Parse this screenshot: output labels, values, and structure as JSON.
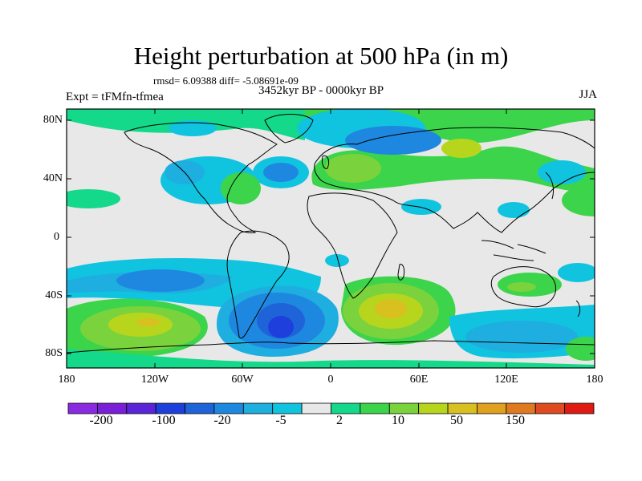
{
  "title": "Height perturbation at 500 hPa (in m)",
  "stats": "rmsd= 6.09388 diff= -5.08691e-09",
  "experiment": "Expt = tFMfn-tfmea",
  "period": "3452kyr BP - 0000kyr BP",
  "season": "JJA",
  "lat_labels": [
    "80N",
    "40N",
    "0",
    "40S",
    "80S"
  ],
  "lon_labels": [
    "180",
    "120W",
    "60W",
    "0",
    "60E",
    "120E",
    "180"
  ],
  "colorbar": {
    "colors": [
      "#8a2be2",
      "#7a1fd8",
      "#5a24d8",
      "#1f3fdd",
      "#1f63d8",
      "#1e88e0",
      "#1eaee0",
      "#10c4e0",
      "#e8e8e8",
      "#14d88a",
      "#3cd44a",
      "#7ad33c",
      "#b8d51e",
      "#d8c020",
      "#e0a020",
      "#e07a20",
      "#e04a20",
      "#e01a10"
    ],
    "labels": [
      "-200",
      "-100",
      "-20",
      "-5",
      "2",
      "10",
      "50",
      "150"
    ]
  }
}
